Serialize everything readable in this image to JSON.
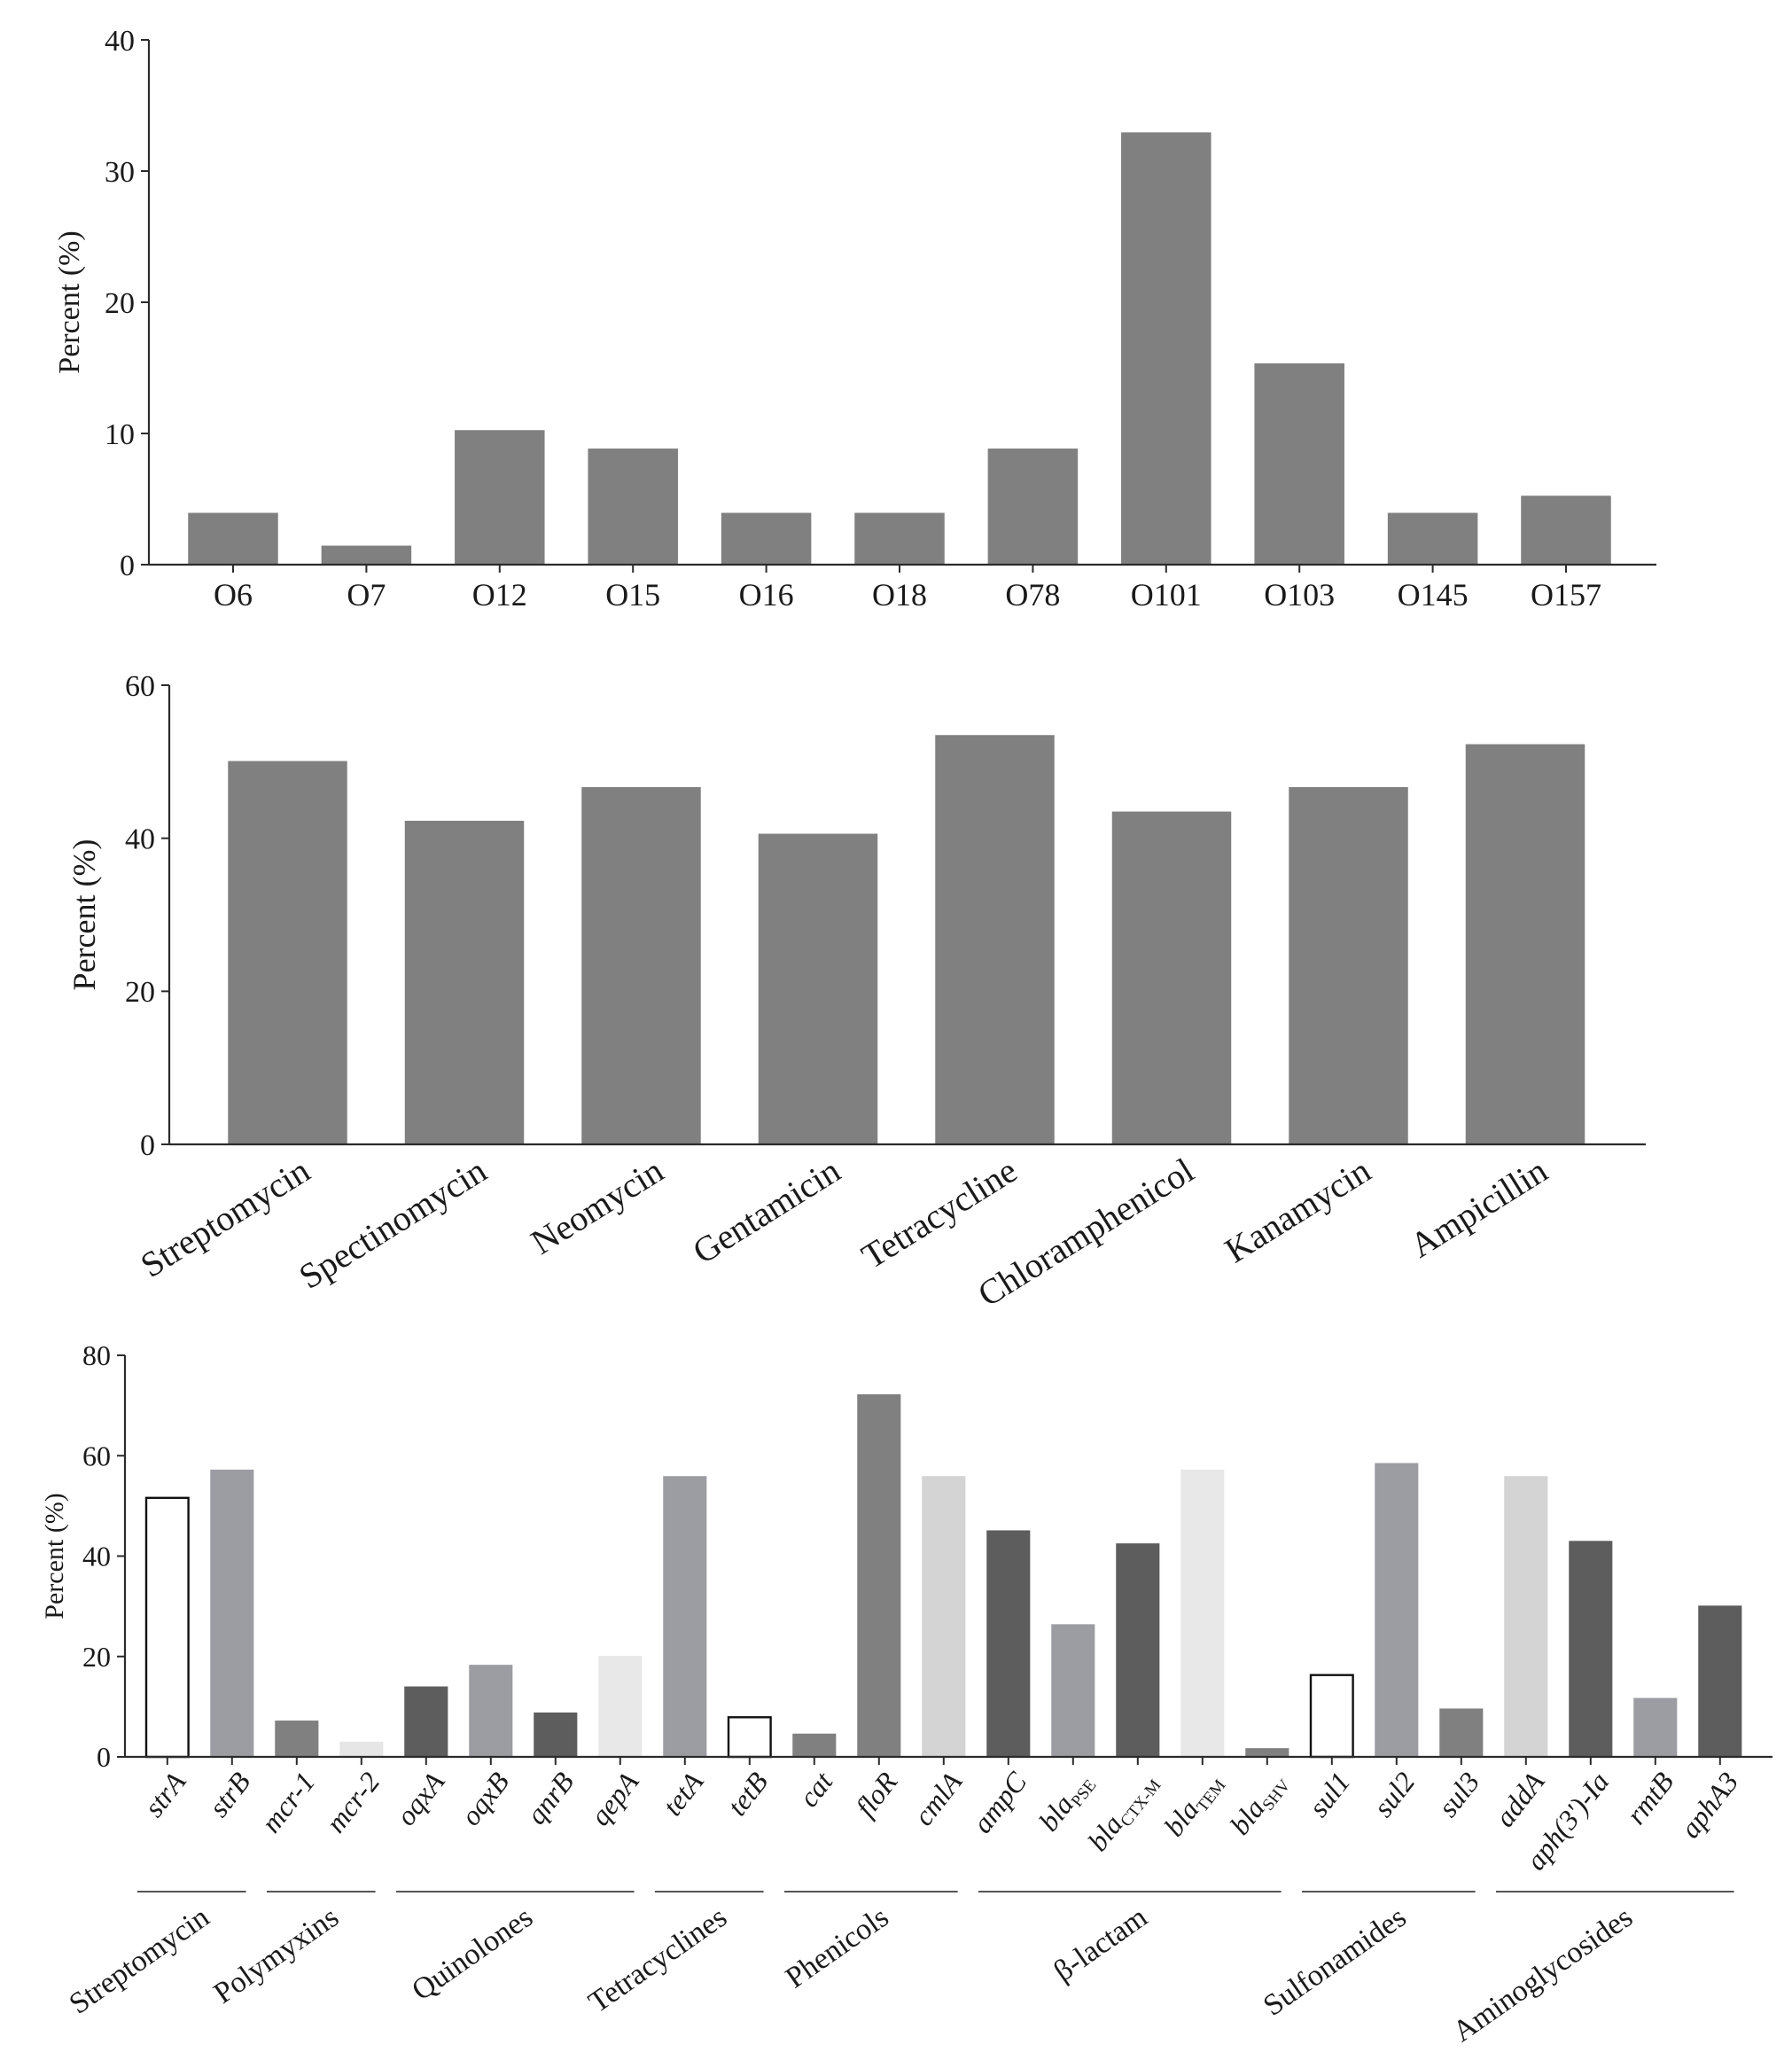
{
  "chart_data": [
    {
      "type": "bar",
      "categories": [
        "O6",
        "O7",
        "O12",
        "O15",
        "O16",
        "O18",
        "O78",
        "O101",
        "O103",
        "O145",
        "O157"
      ],
      "values": [
        3.9,
        1.4,
        10.2,
        8.8,
        3.9,
        3.9,
        8.8,
        32.9,
        15.3,
        3.9,
        5.2
      ],
      "ylabel": "Percent (%)",
      "ylim": [
        0,
        40
      ],
      "yticks": [
        0,
        10,
        20,
        30,
        40
      ],
      "grid": false,
      "legend": false,
      "bar_color": "#808080"
    },
    {
      "type": "bar",
      "categories": [
        "Streptomycin",
        "Spectinomycin",
        "Neomycin",
        "Gentamicin",
        "Tetracycline",
        "Chloramphenicol",
        "Kanamycin",
        "Ampicillin"
      ],
      "values": [
        50.0,
        42.2,
        46.6,
        40.5,
        53.4,
        43.4,
        46.6,
        52.2
      ],
      "ylabel": "Percent (%)",
      "ylim": [
        0,
        60
      ],
      "yticks": [
        0,
        20,
        40,
        60
      ],
      "grid": false,
      "legend": false,
      "bar_color": "#808080"
    },
    {
      "type": "bar",
      "categories": [
        "strA",
        "strB",
        "mcr-1",
        "mcr-2",
        "oqxA",
        "oqxB",
        "qnrB",
        "qepA",
        "tetA",
        "tetB",
        "cat",
        "floR",
        "cmlA",
        "ampC",
        "blaPSE",
        "blaCTX-M",
        "blaTEM",
        "blaSHV",
        "sul1",
        "sul2",
        "sul3",
        "addA",
        "aph(3')-Ia",
        "rmtB",
        "aphA3"
      ],
      "values": [
        51.6,
        57.1,
        7.1,
        2.9,
        13.9,
        18.2,
        8.7,
        20.0,
        55.8,
        7.9,
        4.5,
        72.1,
        55.8,
        45.0,
        26.3,
        42.4,
        57.1,
        1.6,
        16.3,
        58.4,
        9.5,
        55.8,
        42.9,
        11.6,
        30.0
      ],
      "colors": [
        "#ffffff",
        "#9c9ca3",
        "#808080",
        "#e6e6e6",
        "#5d5d5d",
        "#9c9ca3",
        "#5d5d5d",
        "#e8e8e8",
        "#9c9ca3",
        "#ffffff",
        "#808080",
        "#808080",
        "#d4d4d4",
        "#5d5d5d",
        "#9c9ca3",
        "#5d5d5d",
        "#e8e8e8",
        "#808080",
        "#ffffff",
        "#9c9ca3",
        "#808080",
        "#d4d4d4",
        "#5d5d5d",
        "#9c9ca3",
        "#5d5d5d"
      ],
      "ylabel": "Percent (%)",
      "ylim": [
        0,
        80
      ],
      "yticks": [
        0,
        20,
        40,
        60,
        80
      ],
      "grid": false,
      "legend": false,
      "groups": [
        {
          "name": "Streptomycin",
          "members": [
            "strA",
            "strB"
          ]
        },
        {
          "name": "Polymyxins",
          "members": [
            "mcr-1",
            "mcr-2"
          ]
        },
        {
          "name": "Quinolones",
          "members": [
            "oqxA",
            "oqxB",
            "qnrB",
            "qepA"
          ]
        },
        {
          "name": "Tetracyclines",
          "members": [
            "tetA",
            "tetB"
          ]
        },
        {
          "name": "Phenicols",
          "members": [
            "cat",
            "floR",
            "cmlA"
          ]
        },
        {
          "name": "β-lactam",
          "members": [
            "ampC",
            "blaPSE",
            "blaCTX-M",
            "blaTEM",
            "blaSHV"
          ]
        },
        {
          "name": "Sulfonamides",
          "members": [
            "sul1",
            "sul2",
            "sul3"
          ]
        },
        {
          "name": "Aminoglycosides",
          "members": [
            "addA",
            "aph(3')-Ia",
            "rmtB",
            "aphA3"
          ]
        }
      ]
    }
  ]
}
